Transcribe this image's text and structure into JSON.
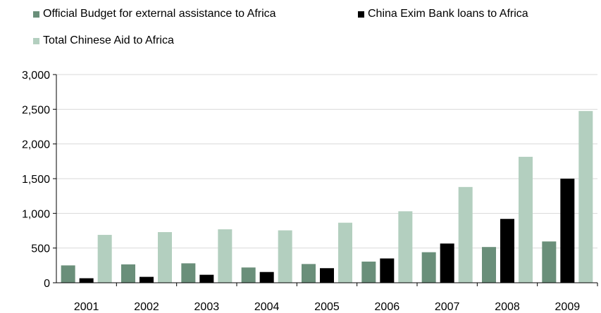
{
  "chart_data": {
    "type": "bar",
    "categories": [
      "2001",
      "2002",
      "2003",
      "2004",
      "2005",
      "2006",
      "2007",
      "2008",
      "2009"
    ],
    "series": [
      {
        "name": "Official Budget for external assistance to Africa",
        "color": "#6a8f7a",
        "values": [
          250,
          265,
          280,
          220,
          270,
          305,
          440,
          515,
          595
        ]
      },
      {
        "name": "China Exim Bank loans to Africa",
        "color": "#000000",
        "values": [
          65,
          85,
          115,
          155,
          210,
          350,
          565,
          920,
          1500
        ]
      },
      {
        "name": "Total Chinese Aid to Africa",
        "color": "#b3cfbf",
        "values": [
          690,
          730,
          770,
          755,
          865,
          1030,
          1380,
          1815,
          2475
        ]
      }
    ],
    "y_ticks": [
      "0",
      "500",
      "1,000",
      "1,500",
      "2,000",
      "2,500",
      "3,000"
    ],
    "ylim": [
      0,
      3000
    ],
    "grid": true,
    "legend_position": "top-left"
  }
}
